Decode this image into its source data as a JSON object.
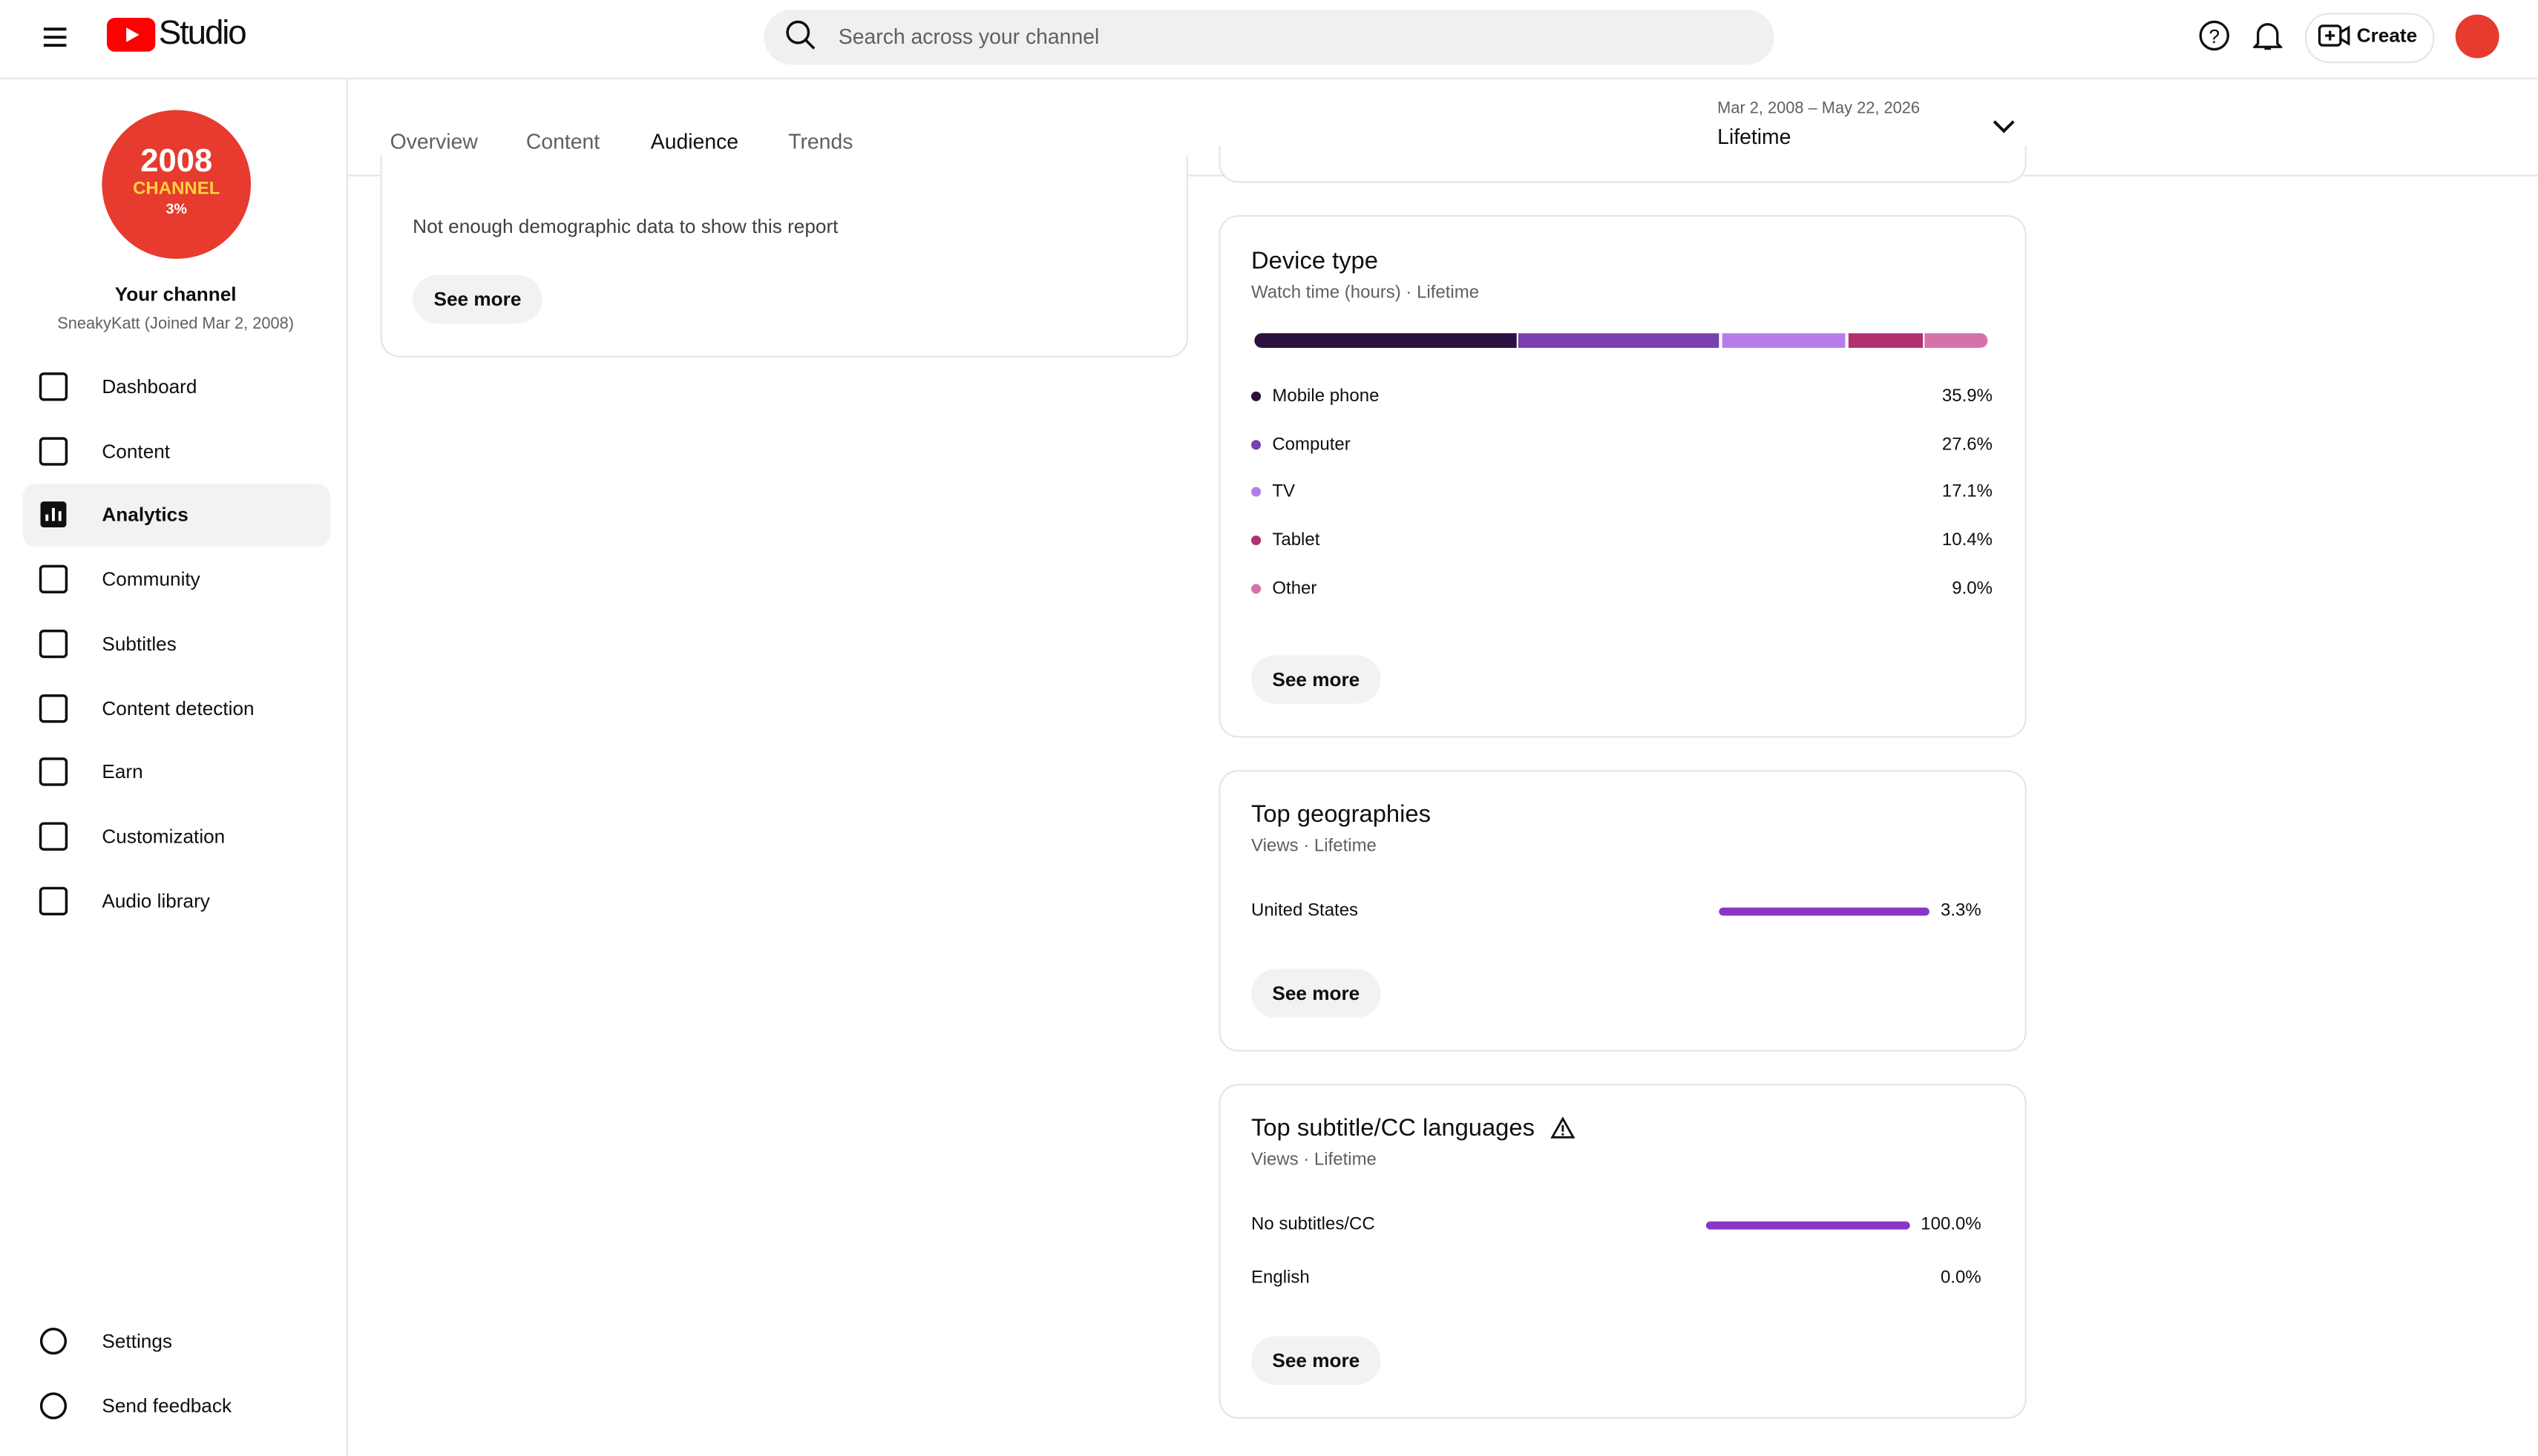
{
  "header": {
    "logo": "Studio",
    "search_placeholder": "Search across your channel",
    "create": "Create"
  },
  "sidebar": {
    "avatar_lines": [
      "2008",
      "CHANNEL",
      "3%"
    ],
    "channel_name": "Your channel",
    "channel_sub": "SneakyKatt (Joined Mar 2, 2008)",
    "nav": [
      "Dashboard",
      "Content",
      "Analytics",
      "Community",
      "Subtitles",
      "Content detection",
      "Earn",
      "Customization",
      "Audio library"
    ],
    "active_nav": 2,
    "bottom_nav": [
      "Settings",
      "Send feedback"
    ]
  },
  "tabs": {
    "items": [
      "Overview",
      "Content",
      "Audience",
      "Trends"
    ],
    "active": 2
  },
  "date_range": {
    "range": "Mar 2, 2008 – May 22, 2026",
    "period": "Lifetime"
  },
  "demographics": {
    "message": "Not enough demographic data to show this report",
    "button": "See more"
  },
  "device_type": {
    "title": "Device type",
    "subtitle": "Watch time (hours) · Lifetime",
    "items": [
      {
        "name": "Mobile phone",
        "color": "#2b1040",
        "value": 35.9,
        "label": "35.9%"
      },
      {
        "name": "Computer",
        "color": "#7a3fb0",
        "value": 27.6,
        "label": "27.6%"
      },
      {
        "name": "TV",
        "color": "#b67de9",
        "value": 17.1,
        "label": "17.1%"
      },
      {
        "name": "Tablet",
        "color": "#b3306f",
        "value": 10.4,
        "label": "10.4%"
      },
      {
        "name": "Other",
        "color": "#d373aa",
        "value": 9.0,
        "label": "9.0%"
      }
    ],
    "button": "See more"
  },
  "top_geographies": {
    "title": "Top geographies",
    "subtitle": "Views · Lifetime",
    "color": "#8a35c4",
    "items": [
      {
        "name": "United States",
        "value": 3.3,
        "label": "3.3%"
      }
    ],
    "button": "See more"
  },
  "top_subtitle_languages": {
    "title": "Top subtitle/CC languages",
    "subtitle": "Views · Lifetime",
    "color": "#8a35c4",
    "items": [
      {
        "name": "No subtitles/CC",
        "value": 100.0,
        "label": "100.0%"
      },
      {
        "name": "English",
        "value": 0.0,
        "label": "0.0%"
      }
    ],
    "button": "See more"
  }
}
